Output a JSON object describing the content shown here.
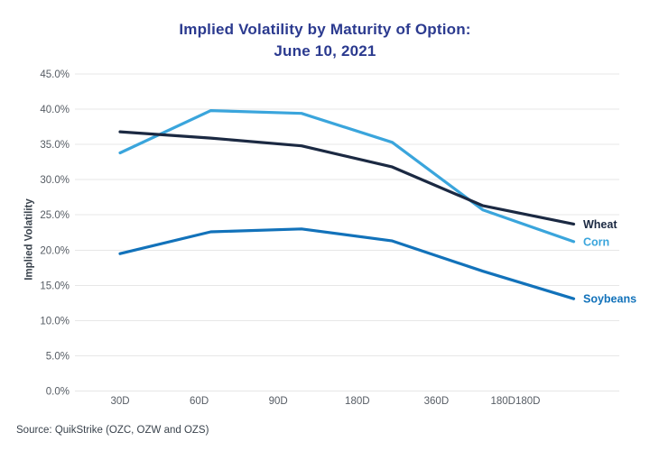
{
  "title": {
    "line1": "Implied Volatility by Maturity of Option:",
    "line2": "June 10, 2021"
  },
  "source": "Source: QuikStrike (OZC, OZW and OZS)",
  "colors": {
    "title": "#2b3a8f",
    "grid": "#e7e7e7",
    "tick_text": "#565c64",
    "axis_title_text": "#3a434d",
    "source_text": "#3a434d",
    "background": "#ffffff"
  },
  "chart_data": {
    "type": "line",
    "title": "Implied Volatility by Maturity of Option: June 10, 2021",
    "xlabel": "",
    "ylabel": "Implied Volatility",
    "unit": "percent",
    "ylim": [
      0,
      45
    ],
    "grid": true,
    "legend_position": "line-end-labels",
    "y_ticks": [
      "45.0%",
      "40.0%",
      "35.0%",
      "30.0%",
      "25.0%",
      "20.0%",
      "15.0%",
      "10.0%",
      "5.0%",
      "0.0%"
    ],
    "categories": [
      "30D",
      "60D",
      "90D",
      "180D",
      "360D",
      "180D180D"
    ],
    "series": [
      {
        "name": "Corn",
        "color": "#3aa5dc",
        "values": [
          33.8,
          39.8,
          39.4,
          35.3,
          25.7,
          21.2
        ]
      },
      {
        "name": "Soybeans",
        "color": "#1272ba",
        "values": [
          19.5,
          22.6,
          23.0,
          21.3,
          17.0,
          13.1
        ]
      },
      {
        "name": "Wheat",
        "color": "#1b2942",
        "values": [
          36.8,
          35.9,
          34.8,
          31.8,
          26.3,
          23.7
        ]
      }
    ]
  }
}
